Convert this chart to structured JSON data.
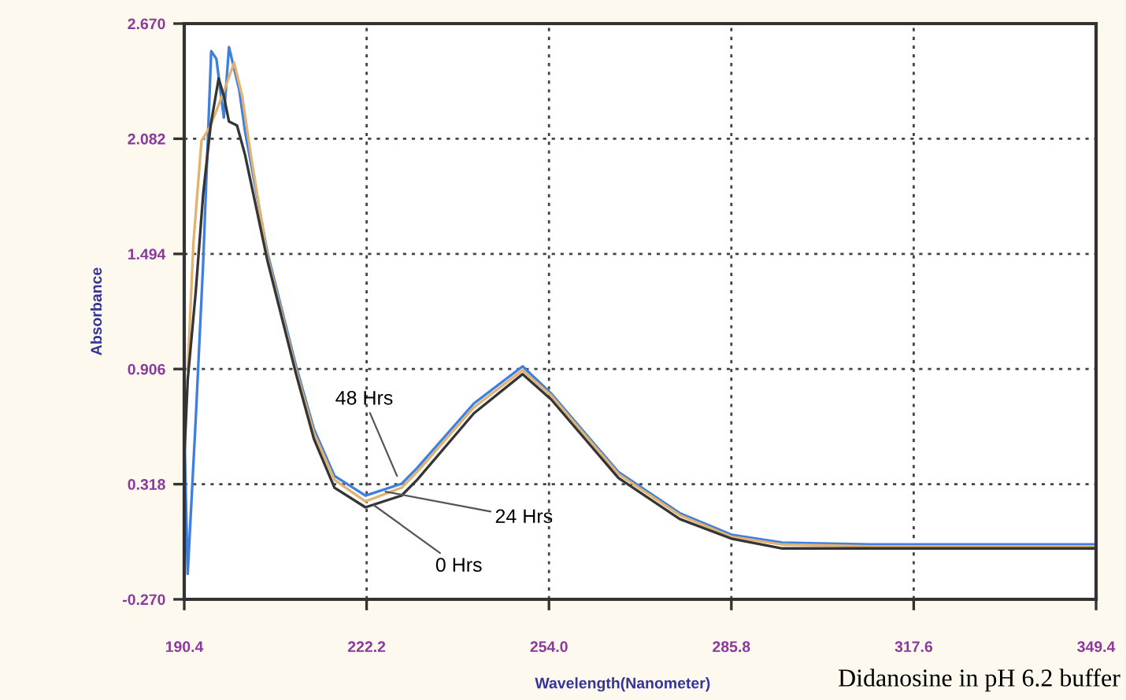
{
  "chart_data": {
    "type": "line",
    "xlabel": "Wavelength(Nanometer)",
    "ylabel": "Absorbance",
    "xlim": [
      190.4,
      349.4
    ],
    "xticks": [
      190.4,
      222.2,
      {
        "value": 254,
        "label": "254.0"
      },
      285.8,
      317.6,
      349.4
    ],
    "ylim": [
      -0.27,
      2.67
    ],
    "yticks": [
      {
        "value": -0.27,
        "label": "-0.270"
      },
      {
        "value": 0.318,
        "label": "0.318"
      },
      {
        "value": 0.906,
        "label": "0.906"
      },
      {
        "value": 1.494,
        "label": "1.494"
      },
      {
        "value": 2.082,
        "label": "2.082"
      },
      {
        "value": 2.67,
        "label": "2.670"
      }
    ],
    "grid": true,
    "line_style": "solid",
    "series": [
      {
        "color": "#3f7fe0",
        "x": [
          190.4,
          191.0,
          192.4,
          193.7,
          195.1,
          196.0,
          197.3,
          198.2,
          200.0,
          201.0,
          204.9,
          209.9,
          213.0,
          216.6,
          222.0,
          228.3,
          231.0,
          240.9,
          249.4,
          254.4,
          266.1,
          276.8,
          285.8,
          294.7,
          310.0,
          330.0,
          349.4
        ],
        "values": [
          0.6,
          -0.14,
          0.65,
          1.45,
          2.53,
          2.49,
          2.19,
          2.55,
          2.33,
          2.12,
          1.5,
          0.92,
          0.6,
          0.36,
          0.26,
          0.32,
          0.4,
          0.73,
          0.92,
          0.78,
          0.38,
          0.17,
          0.06,
          0.02,
          0.01,
          0.01,
          0.01
        ]
      },
      {
        "color": "#e2b370",
        "x": [
          191.0,
          192.0,
          193.4,
          195.0,
          197.0,
          199.1,
          200.5,
          202.0,
          204.9,
          209.9,
          213.0,
          216.6,
          222.0,
          228.3,
          231.0,
          240.9,
          249.4,
          254.4,
          266.1,
          276.8,
          285.8,
          294.7,
          310.0,
          330.0,
          349.4
        ],
        "values": [
          0.9,
          1.55,
          2.07,
          2.15,
          2.3,
          2.47,
          2.3,
          2.0,
          1.48,
          0.9,
          0.58,
          0.34,
          0.23,
          0.3,
          0.38,
          0.71,
          0.9,
          0.77,
          0.37,
          0.16,
          0.05,
          0.01,
          0.0,
          0.0,
          0.0
        ]
      },
      {
        "color": "#353535",
        "x": [
          190.4,
          191.0,
          192.4,
          193.7,
          195.0,
          196.4,
          197.3,
          198.2,
          199.6,
          201.0,
          204.9,
          209.9,
          213.0,
          216.6,
          222.0,
          228.3,
          231.0,
          240.9,
          249.4,
          254.4,
          266.1,
          276.8,
          285.8,
          294.7,
          310.0,
          330.0,
          349.4
        ],
        "values": [
          0.45,
          0.85,
          1.3,
          1.8,
          2.15,
          2.39,
          2.3,
          2.17,
          2.15,
          2.0,
          1.46,
          0.88,
          0.55,
          0.3,
          0.2,
          0.26,
          0.34,
          0.68,
          0.88,
          0.75,
          0.35,
          0.14,
          0.04,
          -0.01,
          -0.01,
          -0.01,
          -0.01
        ]
      }
    ],
    "annotations": [
      {
        "text": "48 Hrs",
        "x": 227.5,
        "y": 0.36
      },
      {
        "text": "24 Hrs",
        "x": 225.5,
        "y": 0.28
      },
      {
        "text": "0 Hrs",
        "x": 223.5,
        "y": 0.21
      },
      "Didanosine in pH 6.2 buffer"
    ]
  }
}
